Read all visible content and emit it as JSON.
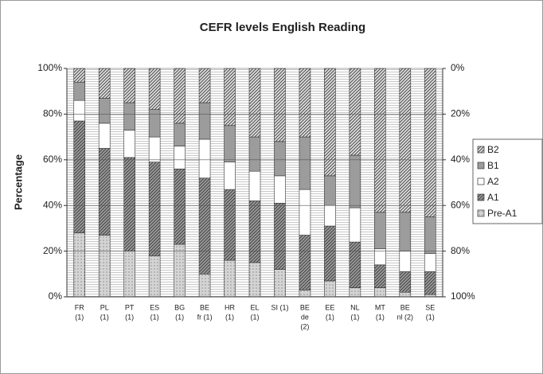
{
  "chart_data": {
    "type": "stacked_bar",
    "title": "CEFR levels    English Reading",
    "y_label": "Percentage",
    "categories": [
      [
        "FR",
        "(1)"
      ],
      [
        "PL",
        "(1)"
      ],
      [
        "PT",
        "(1)"
      ],
      [
        "ES",
        "(1)"
      ],
      [
        "BG",
        "(1)"
      ],
      [
        "BE",
        "fr (1)"
      ],
      [
        "HR",
        "(1)"
      ],
      [
        "EL",
        "(1)"
      ],
      [
        "SI (1)"
      ],
      [
        "BE",
        "de",
        "(2)"
      ],
      [
        "EE",
        "(1)"
      ],
      [
        "NL",
        "(1)"
      ],
      [
        "MT",
        "(1)"
      ],
      [
        "BE",
        "nl (2)"
      ],
      [
        "SE",
        "(1)"
      ]
    ],
    "series": [
      {
        "name": "Pre-A1",
        "color": "#d4d4d4",
        "hatch": "dots",
        "values": [
          28,
          27,
          20,
          18,
          23,
          10,
          16,
          15,
          12,
          3,
          7,
          4,
          4,
          2,
          1
        ]
      },
      {
        "name": "A1",
        "color": "#9a9a9a",
        "hatch": "diagonal",
        "values": [
          49,
          38,
          41,
          41,
          33,
          42,
          31,
          27,
          29,
          24,
          24,
          20,
          10,
          9,
          10
        ]
      },
      {
        "name": "A2",
        "color": "#ffffff",
        "hatch": "none",
        "values": [
          9,
          11,
          12,
          11,
          10,
          17,
          12,
          13,
          12,
          20,
          9,
          15,
          7,
          9,
          8
        ]
      },
      {
        "name": "B1",
        "color": "#9c9c9c",
        "hatch": "none",
        "values": [
          8,
          11,
          12,
          12,
          10,
          16,
          16,
          15,
          15,
          23,
          13,
          23,
          16,
          17,
          16
        ]
      },
      {
        "name": "B2",
        "color": "#dcdcdc",
        "hatch": "diagonal",
        "values": [
          6,
          13,
          15,
          18,
          24,
          15,
          25,
          30,
          32,
          30,
          47,
          38,
          63,
          63,
          65
        ]
      }
    ],
    "ylim": [
      0,
      100
    ],
    "yticks": [
      {
        "value": 0,
        "label": "0%"
      },
      {
        "value": 20,
        "label": "20%"
      },
      {
        "value": 40,
        "label": "40%"
      },
      {
        "value": 60,
        "label": "60%"
      },
      {
        "value": 80,
        "label": "80%"
      },
      {
        "value": 100,
        "label": "100%"
      }
    ],
    "y2lim": [
      100,
      0
    ],
    "y2ticks": [
      {
        "value": 0,
        "label": "0%"
      },
      {
        "value": 20,
        "label": "20%"
      },
      {
        "value": 40,
        "label": "40%"
      },
      {
        "value": 60,
        "label": "60%"
      },
      {
        "value": 80,
        "label": "80%"
      },
      {
        "value": 100,
        "label": "100%"
      }
    ],
    "grid": true,
    "legend": "right"
  }
}
